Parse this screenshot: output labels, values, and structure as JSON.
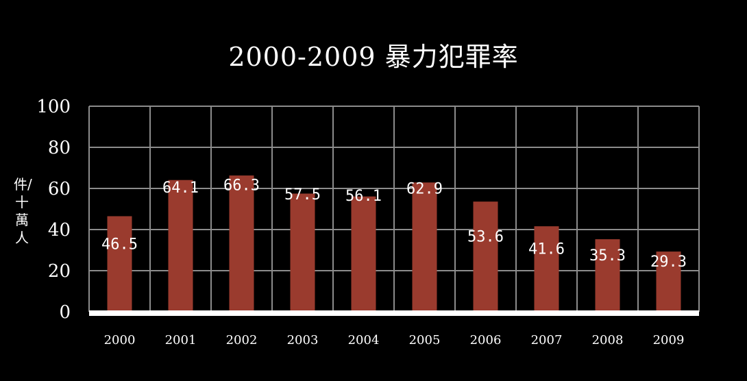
{
  "chart_data": {
    "type": "bar",
    "title": "2000-2009 暴力犯罪率",
    "ylabel": "件/十萬人",
    "xlabel": "",
    "categories": [
      "2000",
      "2001",
      "2002",
      "2003",
      "2004",
      "2005",
      "2006",
      "2007",
      "2008",
      "2009"
    ],
    "values": [
      46.5,
      64.1,
      66.3,
      57.5,
      56.1,
      62.9,
      53.6,
      41.6,
      35.3,
      29.3
    ],
    "data_labels": [
      "46.5",
      "64.1",
      "66.3",
      "57.5",
      "56.1",
      "62.9",
      "53.6",
      "41.6",
      "35.3",
      "29.3"
    ],
    "ylim": [
      0,
      100
    ],
    "yticks": [
      0,
      20,
      40,
      60,
      80,
      100
    ],
    "grid": true,
    "colors": {
      "background": "#000000",
      "bar": "#9a3b2e",
      "grid": "#8c8c8c",
      "baseline": "#ffffff",
      "text": "#ffffff"
    }
  }
}
